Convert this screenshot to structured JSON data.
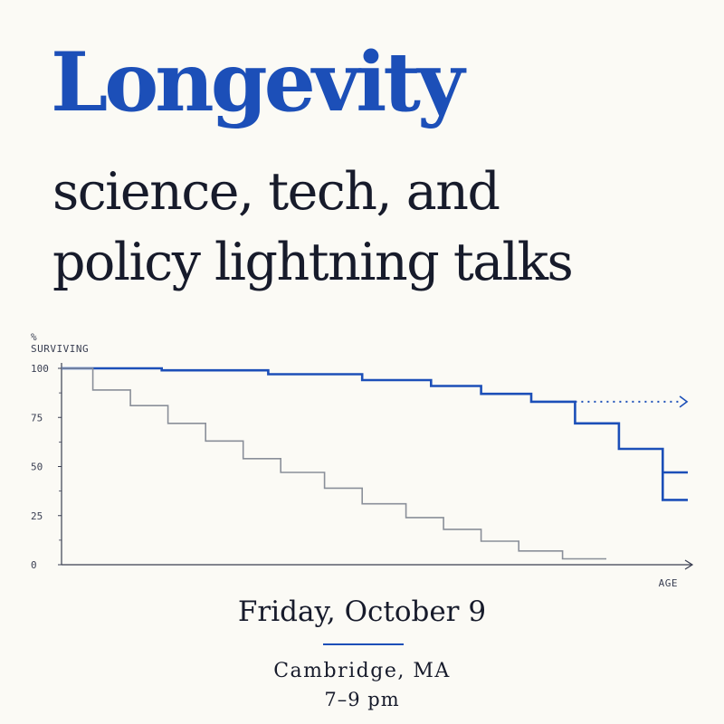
{
  "poster": {
    "title": "Longevity",
    "subtitle_line1": "science, tech, and",
    "subtitle_line2": "policy lightning talks",
    "date": "Friday, October 9",
    "location": "Cambridge, MA",
    "time": "7–9 pm"
  },
  "colors": {
    "background": "#fbfaf5",
    "accent_blue": "#1c4fb8",
    "dark_text": "#171b2b",
    "gray_series": "#8a8f99"
  },
  "chart_data": {
    "type": "line",
    "step": true,
    "ylabel_line1": "%",
    "ylabel_line2": "SURVIVING",
    "xlabel": "AGE",
    "ylim": [
      0,
      100
    ],
    "xlim": [
      0,
      100
    ],
    "yticks": [
      0,
      25,
      50,
      75,
      100
    ],
    "series": [
      {
        "color": "#1c4fb8",
        "style": "solid",
        "x": [
          0,
          16,
          16,
          33,
          33,
          48,
          48,
          59,
          59,
          67,
          67,
          75,
          75,
          82,
          82,
          89,
          89,
          96,
          96,
          100
        ],
        "values": [
          100,
          100,
          99,
          99,
          97,
          97,
          94,
          94,
          91,
          91,
          87,
          87,
          83,
          83,
          72,
          72,
          59,
          59,
          47,
          47
        ],
        "final_drop": [
          33,
          33
        ],
        "final_x": [
          96,
          100
        ]
      },
      {
        "color": "#1c4fb8",
        "style": "dotted",
        "x": [
          82,
          99
        ],
        "values": [
          83,
          83
        ],
        "arrow": true
      },
      {
        "color": "#8a8f99",
        "style": "solid",
        "x": [
          0,
          5,
          5,
          11,
          11,
          17,
          17,
          23,
          23,
          29,
          29,
          35,
          35,
          42,
          42,
          48,
          48,
          55,
          55,
          61,
          61,
          67,
          67,
          73,
          73,
          80,
          80,
          87
        ],
        "values": [
          100,
          100,
          89,
          89,
          81,
          81,
          72,
          72,
          63,
          63,
          54,
          54,
          47,
          47,
          39,
          39,
          31,
          31,
          24,
          24,
          18,
          18,
          12,
          12,
          7,
          7,
          3,
          3
        ]
      }
    ]
  }
}
